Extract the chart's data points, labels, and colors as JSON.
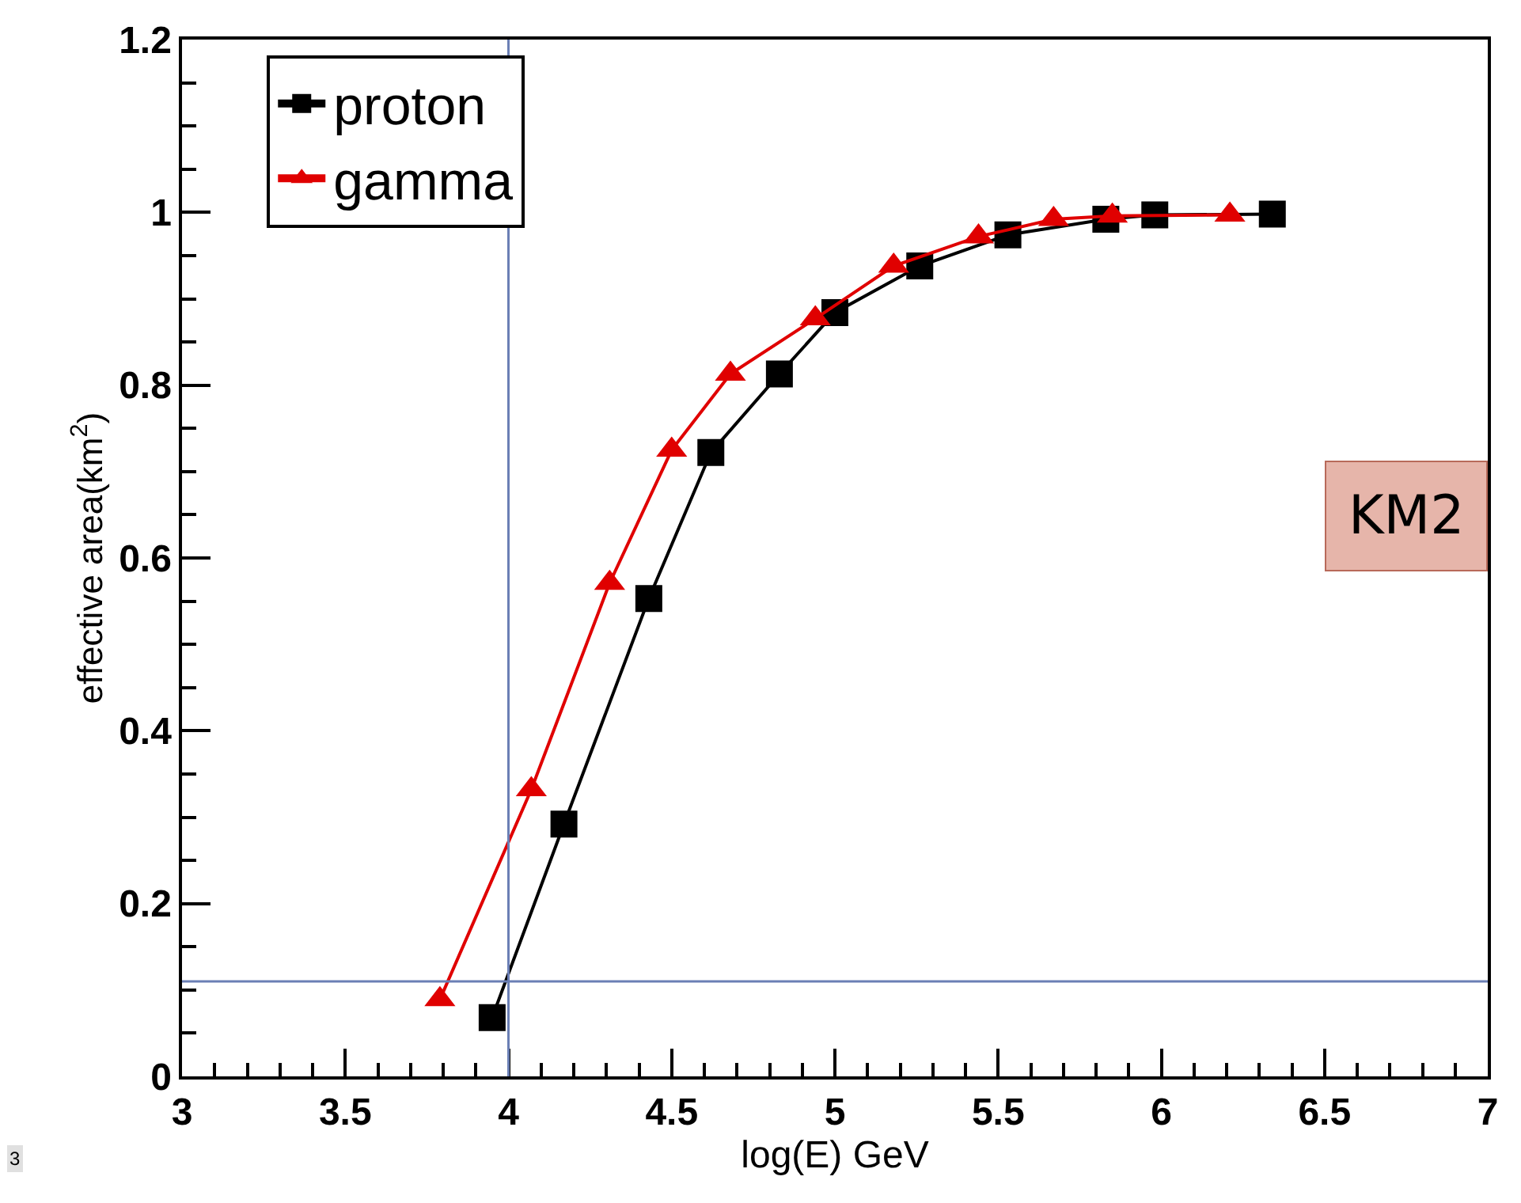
{
  "chart_data": {
    "type": "line",
    "xlabel": "log(E) GeV",
    "ylabel": "effective area(km$^{2}$)",
    "xlim": [
      3,
      7
    ],
    "xticks": [
      3,
      3.5,
      4,
      4.5,
      5,
      5.5,
      6,
      6.5,
      7
    ],
    "ylim": [
      0,
      1.2
    ],
    "yticks": [
      0,
      0.2,
      0.4,
      0.6,
      0.8,
      1,
      1.2
    ],
    "legend": "top left",
    "series": [
      {
        "name": "proton",
        "color": "#000000",
        "marker": "square",
        "x": [
          3.95,
          4.17,
          4.43,
          4.62,
          4.83,
          5.0,
          5.26,
          5.53,
          5.83,
          5.98,
          6.34
        ],
        "values": [
          0.068,
          0.292,
          0.553,
          0.722,
          0.813,
          0.884,
          0.938,
          0.974,
          0.992,
          0.997,
          0.998
        ]
      },
      {
        "name": "gamma",
        "color": "#e00000",
        "marker": "triangle",
        "x": [
          3.79,
          4.07,
          4.31,
          4.5,
          4.68,
          4.94,
          5.18,
          5.44,
          5.67,
          5.85,
          6.21
        ],
        "values": [
          0.089,
          0.332,
          0.571,
          0.725,
          0.813,
          0.877,
          0.938,
          0.972,
          0.992,
          0.996,
          0.997
        ]
      }
    ],
    "ref_lines": [
      {
        "axis": "x",
        "value": 4,
        "color": "#6b7fb5"
      },
      {
        "axis": "y",
        "value": 0.11,
        "color": "#6b7fb5"
      }
    ],
    "annotations": [
      "KM2",
      "3"
    ]
  }
}
